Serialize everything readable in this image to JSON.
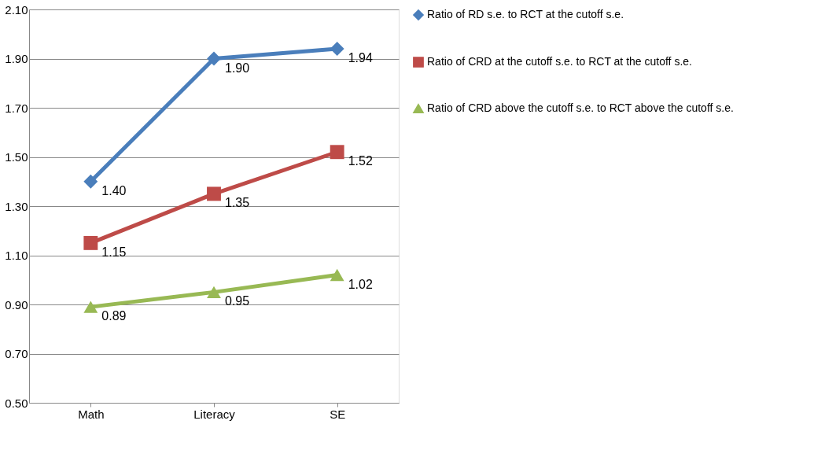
{
  "chart_data": {
    "type": "line",
    "categories": [
      "Math",
      "Literacy",
      "SE"
    ],
    "series": [
      {
        "name": "Ratio of RD s.e. to RCT at the cutoff s.e.",
        "color": "#4a7ebb",
        "marker": "diamond",
        "values": [
          1.4,
          1.9,
          1.94
        ],
        "value_labels": [
          "1.40",
          "1.90",
          "1.94"
        ]
      },
      {
        "name": "Ratio of CRD at the cutoff s.e. to RCT at the cutoff s.e.",
        "color": "#be4b48",
        "marker": "square",
        "values": [
          1.15,
          1.35,
          1.52
        ],
        "value_labels": [
          "1.15",
          "1.35",
          "1.52"
        ]
      },
      {
        "name": "Ratio of CRD above the cutoff s.e. to RCT above the cutoff s.e.",
        "color": "#98b954",
        "marker": "triangle",
        "values": [
          0.89,
          0.95,
          1.02
        ],
        "value_labels": [
          "0.89",
          "0.95",
          "1.02"
        ]
      }
    ],
    "ylim": [
      0.5,
      2.1
    ],
    "yticks": [
      {
        "value": 0.5,
        "label": "0.50"
      },
      {
        "value": 0.7,
        "label": "0.70"
      },
      {
        "value": 0.9,
        "label": "0.90"
      },
      {
        "value": 1.1,
        "label": "1.10"
      },
      {
        "value": 1.3,
        "label": "1.30"
      },
      {
        "value": 1.5,
        "label": "1.50"
      },
      {
        "value": 1.7,
        "label": "1.70"
      },
      {
        "value": 1.9,
        "label": "1.90"
      },
      {
        "value": 2.1,
        "label": "2.10"
      }
    ],
    "grid": "y",
    "legend": "right",
    "line_style": "solid"
  }
}
